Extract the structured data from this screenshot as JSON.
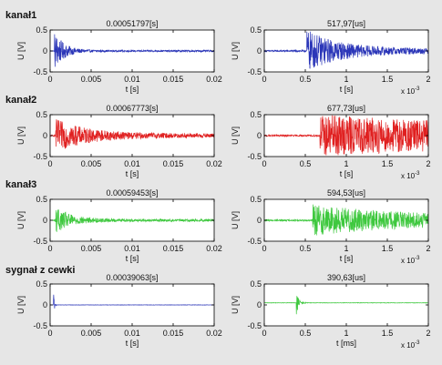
{
  "rows": [
    {
      "label": "kanał1"
    },
    {
      "label": "kanał2"
    },
    {
      "label": "kanał3"
    },
    {
      "label": "sygnał z cewki"
    }
  ],
  "chart_data": [
    {
      "type": "line",
      "title": "0.00051797[s]",
      "xlabel": "t [s]",
      "ylabel": "U [V]",
      "xlim": [
        0,
        0.02
      ],
      "ylim": [
        -0.5,
        0.5
      ],
      "xticks": [
        "0",
        "0.005",
        "0.01",
        "0.015",
        "0.02"
      ],
      "yticks": [
        "-0.5",
        "0",
        "0.5"
      ],
      "x_exponent": "",
      "color": "#2b36b8",
      "grid": false,
      "series": [
        {
          "onset": 0.00052,
          "peak": 0.45,
          "decay": 0.0012,
          "noise": 0.01,
          "tail": 0.02
        }
      ]
    },
    {
      "type": "line",
      "title": "517,97[us]",
      "xlabel": "t [s]",
      "ylabel": "U [V]",
      "xlim": [
        0,
        0.002
      ],
      "ylim": [
        -0.5,
        0.5
      ],
      "xticks": [
        "0",
        "0.5",
        "1",
        "1.5",
        "2"
      ],
      "yticks": [
        "-0.5",
        "0",
        "0.5"
      ],
      "x_exponent": "x 10",
      "exponent_power": "-3",
      "color": "#2b36b8",
      "grid": false,
      "series": [
        {
          "onset": 0.00052,
          "peak": 0.45,
          "decay": 0.0004,
          "noise": 0.02,
          "tail": 0.06
        }
      ]
    },
    {
      "type": "line",
      "title": "0.00067773[s]",
      "xlabel": "t [s]",
      "ylabel": "U [V]",
      "xlim": [
        0,
        0.02
      ],
      "ylim": [
        -0.5,
        0.5
      ],
      "xticks": [
        "0",
        "0.005",
        "0.01",
        "0.015",
        "0.02"
      ],
      "yticks": [
        "-0.5",
        "0",
        "0.5"
      ],
      "x_exponent": "",
      "color": "#e02020",
      "grid": false,
      "series": [
        {
          "onset": 0.00068,
          "peak": 0.35,
          "decay": 0.004,
          "noise": 0.02,
          "tail": 0.05
        }
      ]
    },
    {
      "type": "line",
      "title": "677,73[us]",
      "xlabel": "t [s]",
      "ylabel": "U [V]",
      "xlim": [
        0,
        0.002
      ],
      "ylim": [
        -0.5,
        0.5
      ],
      "xticks": [
        "0",
        "0.5",
        "1",
        "1.5",
        "2"
      ],
      "yticks": [
        "-0.5",
        "0",
        "0.5"
      ],
      "x_exponent": "x 10",
      "exponent_power": "-3",
      "color": "#e02020",
      "grid": false,
      "series": [
        {
          "onset": 0.00068,
          "peak": 0.35,
          "decay": 0.003,
          "noise": 0.02,
          "tail": 0.15
        }
      ]
    },
    {
      "type": "line",
      "title": "0.00059453[s]",
      "xlabel": "t [s]",
      "ylabel": "U [V]",
      "xlim": [
        0,
        0.02
      ],
      "ylim": [
        -0.5,
        0.5
      ],
      "xticks": [
        "0",
        "0.005",
        "0.01",
        "0.015",
        "0.02"
      ],
      "yticks": [
        "-0.5",
        "0",
        "0.5"
      ],
      "x_exponent": "",
      "color": "#3ec83e",
      "grid": false,
      "series": [
        {
          "onset": 0.00059,
          "peak": 0.3,
          "decay": 0.002,
          "noise": 0.01,
          "tail": 0.03
        }
      ]
    },
    {
      "type": "line",
      "title": "594,53[us]",
      "xlabel": "t [s]",
      "ylabel": "U [V]",
      "xlim": [
        0,
        0.002
      ],
      "ylim": [
        -0.5,
        0.5
      ],
      "xticks": [
        "0",
        "0.5",
        "1",
        "1.5",
        "2"
      ],
      "yticks": [
        "-0.5",
        "0",
        "0.5"
      ],
      "x_exponent": "x 10",
      "exponent_power": "-3",
      "color": "#3ec83e",
      "grid": false,
      "series": [
        {
          "onset": 0.00059,
          "peak": 0.3,
          "decay": 0.0012,
          "noise": 0.02,
          "tail": 0.08
        }
      ]
    },
    {
      "type": "line",
      "title": "0.00039063[s]",
      "xlabel": "t [s]",
      "ylabel": "U [V]",
      "xlim": [
        0,
        0.02
      ],
      "ylim": [
        -0.5,
        0.5
      ],
      "xticks": [
        "0",
        "0.005",
        "0.01",
        "0.015",
        "0.02"
      ],
      "yticks": [
        "-0.5",
        "0",
        "0.5"
      ],
      "x_exponent": "",
      "color": "#2b36b8",
      "grid": false,
      "series": [
        {
          "onset": 0.00039,
          "peak": 0.4,
          "decay": 0.0001,
          "noise": 0.004,
          "tail": 0.004
        }
      ]
    },
    {
      "type": "line",
      "title": "390,63[us]",
      "xlabel": "t [ms]",
      "ylabel": "U [V]",
      "xlim": [
        0,
        0.002
      ],
      "ylim": [
        -0.5,
        0.5
      ],
      "xticks": [
        "0",
        "0.5",
        "1",
        "1.5",
        "2"
      ],
      "yticks": [
        "-0.5",
        "0",
        "0.5"
      ],
      "x_exponent": "x 10",
      "exponent_power": "-3",
      "color": "#3ec83e",
      "grid": false,
      "series": [
        {
          "onset": 0.00039,
          "peak": 0.3,
          "decay": 3e-05,
          "noise": 0.005,
          "tail": 0.005,
          "offset": 0.05
        }
      ]
    }
  ]
}
